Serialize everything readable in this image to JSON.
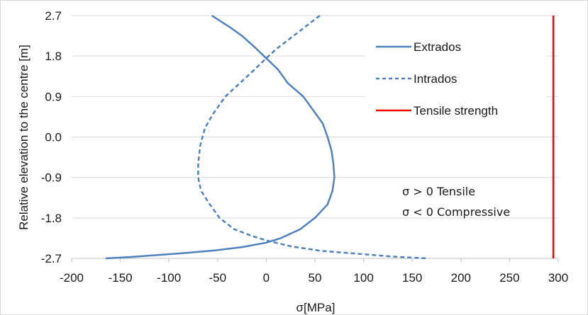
{
  "chart_data": {
    "type": "line",
    "xlabel": "σ[MPa]",
    "ylabel": "Relative elevation to the centre [m]",
    "xlim": [
      -200,
      300
    ],
    "ylim": [
      -2.7,
      2.7
    ],
    "xticks": [
      -200,
      -150,
      -100,
      -50,
      0,
      50,
      100,
      150,
      200,
      250,
      300
    ],
    "yticks": [
      2.7,
      1.8,
      0.9,
      0.0,
      -0.9,
      -1.8,
      -2.7
    ],
    "ytick_labels": [
      "2.7",
      "1.8",
      "0.9",
      "0.0",
      "-0.9",
      "-1.8",
      "-2.7"
    ],
    "grid": "horizontal",
    "legend_position": "top-right",
    "series": [
      {
        "name": "Extrados",
        "style": "solid",
        "color": "#4f81bd",
        "points": [
          [
            -56,
            2.7
          ],
          [
            -38,
            2.45
          ],
          [
            -25,
            2.25
          ],
          [
            -12,
            2.0
          ],
          [
            0,
            1.75
          ],
          [
            12,
            1.5
          ],
          [
            22,
            1.2
          ],
          [
            38,
            0.9
          ],
          [
            48,
            0.6
          ],
          [
            58,
            0.3
          ],
          [
            63,
            0.0
          ],
          [
            67,
            -0.3
          ],
          [
            69,
            -0.6
          ],
          [
            70,
            -0.9
          ],
          [
            68,
            -1.2
          ],
          [
            63,
            -1.5
          ],
          [
            50,
            -1.8
          ],
          [
            35,
            -2.05
          ],
          [
            15,
            -2.25
          ],
          [
            0,
            -2.35
          ],
          [
            -25,
            -2.45
          ],
          [
            -52,
            -2.52
          ],
          [
            -83,
            -2.58
          ],
          [
            -115,
            -2.63
          ],
          [
            -140,
            -2.67
          ],
          [
            -165,
            -2.7
          ]
        ]
      },
      {
        "name": "Intrados",
        "style": "dashed",
        "color": "#4f81bd",
        "points": [
          [
            55,
            2.7
          ],
          [
            40,
            2.45
          ],
          [
            25,
            2.2
          ],
          [
            10,
            1.95
          ],
          [
            0,
            1.75
          ],
          [
            -12,
            1.5
          ],
          [
            -27,
            1.2
          ],
          [
            -42,
            0.9
          ],
          [
            -55,
            0.5
          ],
          [
            -63,
            0.2
          ],
          [
            -68,
            -0.2
          ],
          [
            -70,
            -0.6
          ],
          [
            -70,
            -0.9
          ],
          [
            -67,
            -1.2
          ],
          [
            -58,
            -1.5
          ],
          [
            -48,
            -1.8
          ],
          [
            -33,
            -2.05
          ],
          [
            -15,
            -2.2
          ],
          [
            0,
            -2.3
          ],
          [
            25,
            -2.43
          ],
          [
            55,
            -2.53
          ],
          [
            95,
            -2.6
          ],
          [
            130,
            -2.66
          ],
          [
            165,
            -2.7
          ]
        ]
      },
      {
        "name": "Tensile strength",
        "style": "solid",
        "color": "#ff0000",
        "points": [
          [
            295,
            2.7
          ],
          [
            295,
            -2.7
          ]
        ]
      }
    ],
    "annotations": [
      "σ > 0 Tensile",
      "σ < 0 Compressive"
    ]
  }
}
